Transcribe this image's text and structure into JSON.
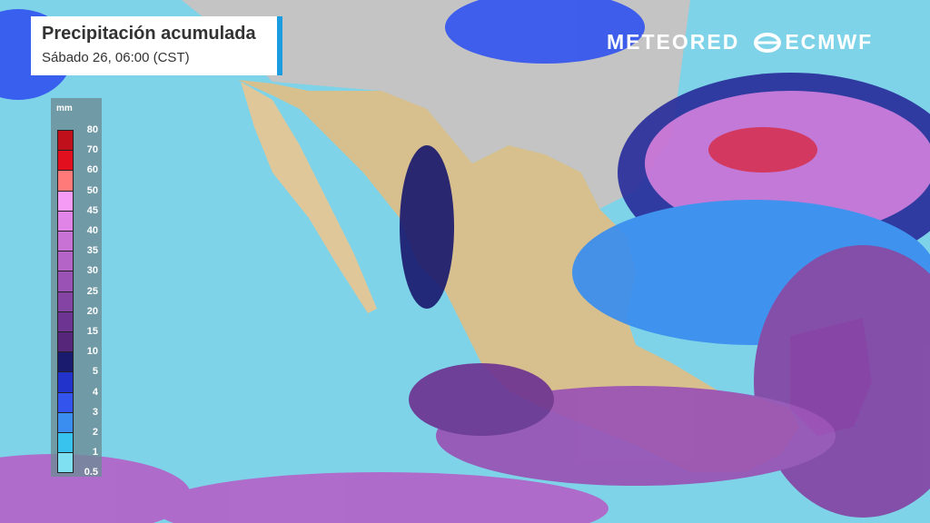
{
  "title": "Precipitación acumulada",
  "subtitle": "Sábado 26, 06:00 (CST)",
  "legend": {
    "unit": "mm",
    "labels": [
      "80",
      "70",
      "60",
      "50",
      "45",
      "40",
      "35",
      "30",
      "25",
      "20",
      "15",
      "10",
      "5",
      "4",
      "3",
      "2",
      "1",
      "0.5"
    ],
    "colors": [
      "#c0101c",
      "#e2101e",
      "#ff7a78",
      "#f59af5",
      "#e184e8",
      "#c872d6",
      "#b463c7",
      "#9a52b4",
      "#8444a3",
      "#6e3492",
      "#55267a",
      "#1a1a6e",
      "#2233cc",
      "#3355ee",
      "#3a8ef0",
      "#38c2ee",
      "#7fe0f2"
    ]
  },
  "logos": {
    "meteored": "METEORED",
    "ecmwf": "ECMWF"
  },
  "colors": {
    "ocean": "#7fd3e8",
    "land": "#c9c9c9",
    "mexico": "#d8c08e",
    "accent": "#1b9be0"
  }
}
